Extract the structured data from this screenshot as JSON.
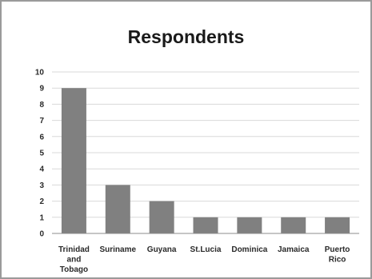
{
  "chart_data": {
    "type": "bar",
    "title": "Respondents",
    "xlabel": "",
    "ylabel": "",
    "categories": [
      "Trinidad and Tobago",
      "Suriname",
      "Guyana",
      "St.Lucia",
      "Dominica",
      "Jamaica",
      "Puerto Rico"
    ],
    "category_label_lines": [
      [
        "Trinidad",
        "and",
        "Tobago"
      ],
      [
        "Suriname"
      ],
      [
        "Guyana"
      ],
      [
        "St.Lucia"
      ],
      [
        "Dominica"
      ],
      [
        "Jamaica"
      ],
      [
        "Puerto",
        "Rico"
      ]
    ],
    "values": [
      9,
      3,
      2,
      1,
      1,
      1,
      1
    ],
    "ylim": [
      0,
      10
    ],
    "yticks": [
      0,
      1,
      2,
      3,
      4,
      5,
      6,
      7,
      8,
      9,
      10
    ],
    "grid": true,
    "legend": "none",
    "bar_color": "#808080",
    "grid_color": "#d9d9d9",
    "axis_color": "#8c8c8c"
  }
}
